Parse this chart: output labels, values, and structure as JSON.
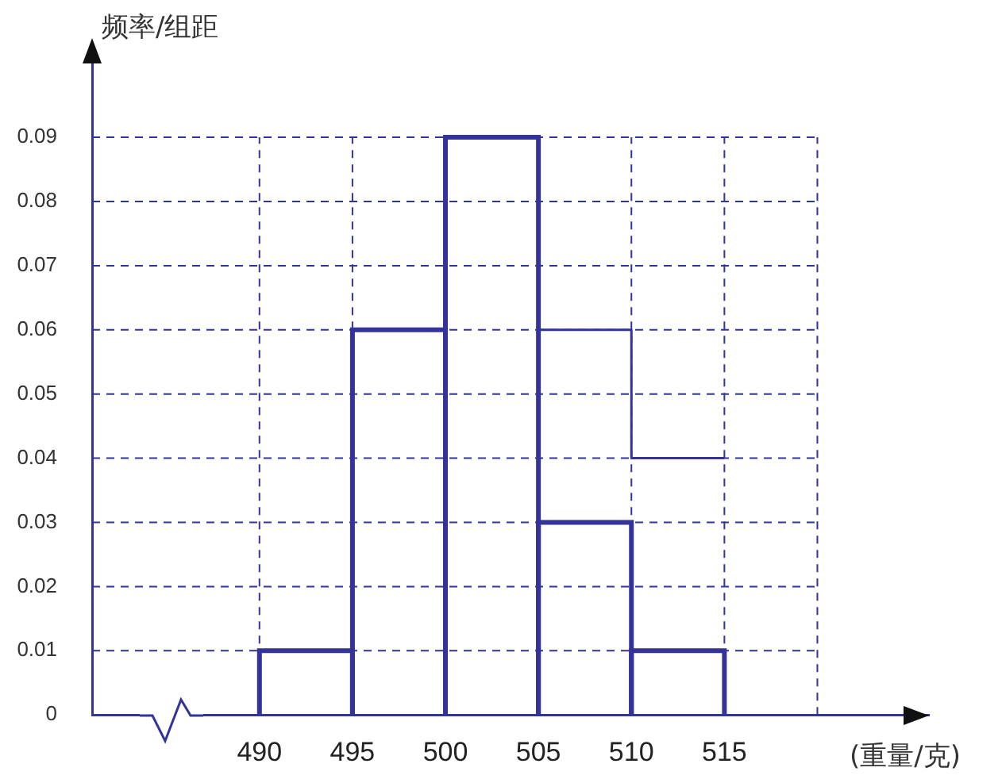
{
  "chart_data": {
    "type": "histogram",
    "xlabel": "(重量/克)",
    "ylabel": "频率/组距",
    "bins": [
      490,
      495,
      500,
      505,
      510,
      515
    ],
    "values": [
      0.01,
      0.06,
      0.09,
      0.03,
      0.01
    ],
    "color": "#333399",
    "series": [
      {
        "type": "step",
        "x": [
          505,
          510,
          515
        ],
        "values": [
          0.06,
          0.04,
          0.04
        ],
        "color": "#333399"
      }
    ],
    "xlim": [
      481,
      526
    ],
    "xticks": [
      490,
      495,
      500,
      505,
      510,
      515,
      {
        "value": 520,
        "label": null
      }
    ],
    "ylim": [
      0,
      0.102
    ],
    "yticks": [
      0,
      0.01,
      0.02,
      0.03,
      0.04,
      0.05,
      0.06,
      0.07,
      0.08,
      0.09
    ],
    "grid": true
  }
}
